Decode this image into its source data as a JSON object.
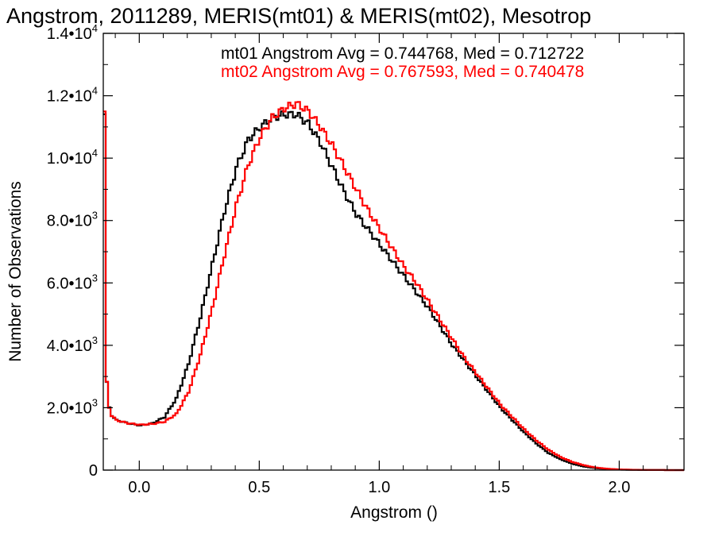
{
  "chart_data": {
    "type": "line",
    "title": "Angstrom, 2011289, MERIS(mt01) & MERIS(mt02), Mesotrop",
    "xlabel": "Angstrom ()",
    "ylabel": "Number of Observations",
    "xlim": [
      -0.15,
      2.27
    ],
    "ylim": [
      0,
      14000
    ],
    "grid": false,
    "xticks": [
      {
        "value": 0.0,
        "label": "0.0"
      },
      {
        "value": 0.5,
        "label": "0.5"
      },
      {
        "value": 1.0,
        "label": "1.0"
      },
      {
        "value": 1.5,
        "label": "1.5"
      },
      {
        "value": 2.0,
        "label": "2.0"
      }
    ],
    "yticks": [
      {
        "value": 0,
        "mant": "0",
        "exp": ""
      },
      {
        "value": 2000,
        "mant": "2.0•10",
        "exp": "3"
      },
      {
        "value": 4000,
        "mant": "4.0•10",
        "exp": "3"
      },
      {
        "value": 6000,
        "mant": "6.0•10",
        "exp": "3"
      },
      {
        "value": 8000,
        "mant": "8.0•10",
        "exp": "3"
      },
      {
        "value": 10000,
        "mant": "1.0•10",
        "exp": "4"
      },
      {
        "value": 12000,
        "mant": "1.2•10",
        "exp": "4"
      },
      {
        "value": 14000,
        "mant": "1.4•10",
        "exp": "4"
      }
    ],
    "annotations": [
      {
        "text": "mt01 Angstrom Avg = 0.744768, Med = 0.712722",
        "color": "#000000"
      },
      {
        "text": "mt02 Angstrom Avg = 0.767593, Med = 0.740478",
        "color": "#ff0000"
      }
    ],
    "series": [
      {
        "color": "#000000",
        "x": [
          -0.15,
          -0.145,
          -0.14,
          -0.13,
          -0.12,
          -0.1,
          -0.05,
          0.0,
          0.05,
          0.1,
          0.15,
          0.2,
          0.25,
          0.3,
          0.35,
          0.4,
          0.45,
          0.5,
          0.55,
          0.6,
          0.65,
          0.7,
          0.75,
          0.8,
          0.85,
          0.9,
          0.95,
          1.0,
          1.05,
          1.1,
          1.15,
          1.2,
          1.25,
          1.3,
          1.35,
          1.4,
          1.45,
          1.5,
          1.55,
          1.6,
          1.65,
          1.7,
          1.75,
          1.8,
          1.85,
          1.9,
          1.95,
          2.0,
          2.05,
          2.1,
          2.15,
          2.2,
          2.27
        ],
        "y": [
          11500,
          5000,
          2800,
          2000,
          1750,
          1600,
          1500,
          1430,
          1500,
          1700,
          2300,
          3400,
          4900,
          6600,
          8300,
          9700,
          10600,
          11000,
          11300,
          11400,
          11400,
          11100,
          10500,
          9700,
          8900,
          8200,
          7700,
          7200,
          6700,
          6200,
          5700,
          5200,
          4600,
          4000,
          3500,
          3000,
          2500,
          2000,
          1600,
          1200,
          850,
          550,
          350,
          200,
          110,
          60,
          30,
          15,
          8,
          4,
          2,
          1,
          0
        ]
      },
      {
        "color": "#ff0000",
        "x": [
          -0.15,
          -0.145,
          -0.14,
          -0.13,
          -0.12,
          -0.1,
          -0.05,
          0.0,
          0.05,
          0.1,
          0.15,
          0.2,
          0.25,
          0.3,
          0.35,
          0.4,
          0.45,
          0.5,
          0.55,
          0.6,
          0.65,
          0.7,
          0.75,
          0.8,
          0.85,
          0.9,
          0.95,
          1.0,
          1.05,
          1.1,
          1.15,
          1.2,
          1.25,
          1.3,
          1.35,
          1.4,
          1.45,
          1.5,
          1.55,
          1.6,
          1.65,
          1.7,
          1.75,
          1.8,
          1.85,
          1.9,
          1.95,
          2.0,
          2.05,
          2.1,
          2.15,
          2.2,
          2.27
        ],
        "y": [
          11500,
          5000,
          2800,
          2000,
          1750,
          1600,
          1500,
          1450,
          1480,
          1550,
          1800,
          2500,
          3700,
          5200,
          6900,
          8500,
          9800,
          10700,
          11300,
          11600,
          11750,
          11500,
          11000,
          10400,
          9700,
          9000,
          8300,
          7700,
          7100,
          6500,
          6000,
          5400,
          4800,
          4200,
          3600,
          3100,
          2600,
          2100,
          1700,
          1300,
          950,
          650,
          420,
          260,
          150,
          80,
          40,
          20,
          10,
          5,
          2,
          1,
          0
        ]
      }
    ]
  }
}
